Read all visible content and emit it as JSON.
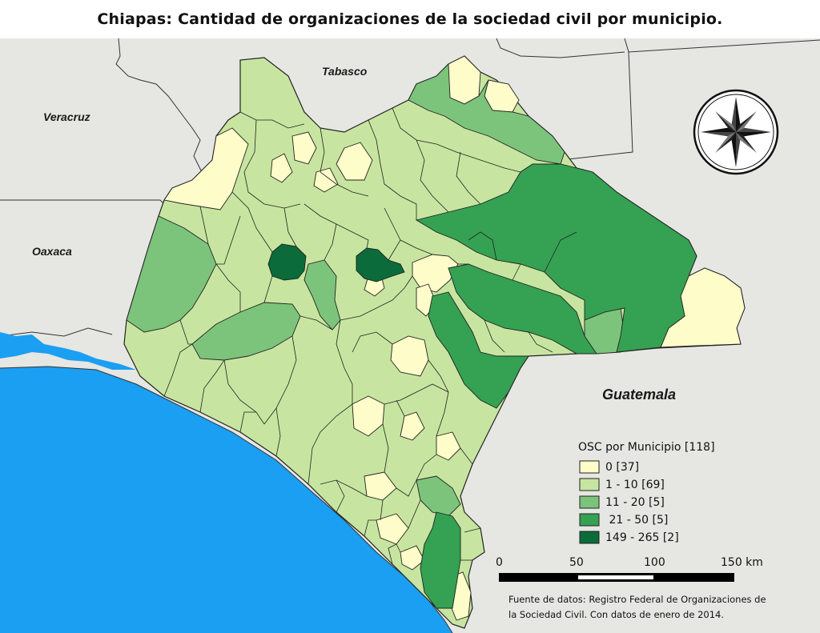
{
  "title": "Chiapas: Cantidad de organizaciones de la sociedad civil por municipio.",
  "labels": {
    "tabasco": "Tabasco",
    "veracruz": "Veracruz",
    "oaxaca": "Oaxaca",
    "guatemala": "Guatemala"
  },
  "legend": {
    "title": "OSC por Municipio [118]",
    "classes": [
      {
        "label": "0 [37]",
        "color": "#fefcc9"
      },
      {
        "label": "1 - 10 [69]",
        "color": "#c7e5a0"
      },
      {
        "label": "11 - 20 [5]",
        "color": "#7cc47c"
      },
      {
        "label": " 21 - 50 [5]",
        "color": "#35a153"
      },
      {
        "label": "149 - 265 [2]",
        "color": "#0b6b3a"
      }
    ]
  },
  "scale": {
    "ticks": [
      "0",
      "50",
      "100",
      "150 km"
    ]
  },
  "source": {
    "line1": "Fuente de datos: Registro Federal de Organizaciones de",
    "line2": "la Sociedad Civil. Con datos de enero de 2014."
  },
  "colors": {
    "background": "#e6e6e3",
    "ocean": "#1a9ff2",
    "border": "#222222"
  }
}
